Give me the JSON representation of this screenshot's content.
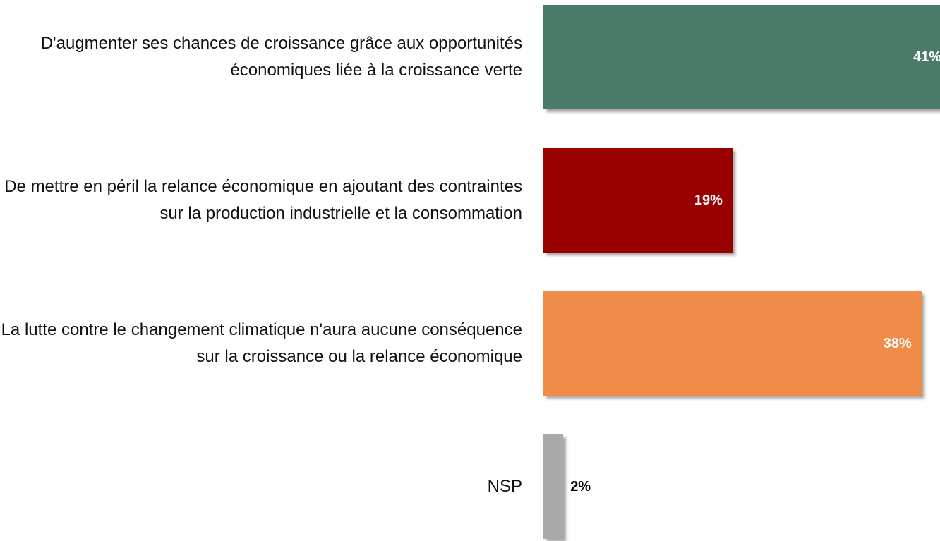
{
  "chart_data": {
    "type": "bar",
    "orientation": "horizontal",
    "categories": [
      "D'augmenter ses chances de croissance grâce aux opportunités économiques liée à la croissance verte",
      "De mettre en péril la relance économique en ajoutant des contraintes sur la production industrielle et la consommation",
      "La lutte contre le changement climatique n'aura aucune conséquence sur la croissance ou la relance économique",
      "NSP"
    ],
    "values": [
      41,
      19,
      38,
      2
    ],
    "value_labels": [
      "41%",
      "19%",
      "38%",
      "2%"
    ],
    "colors": [
      "#4a7a68",
      "#990000",
      "#f08c4a",
      "#a9a9a9"
    ]
  }
}
